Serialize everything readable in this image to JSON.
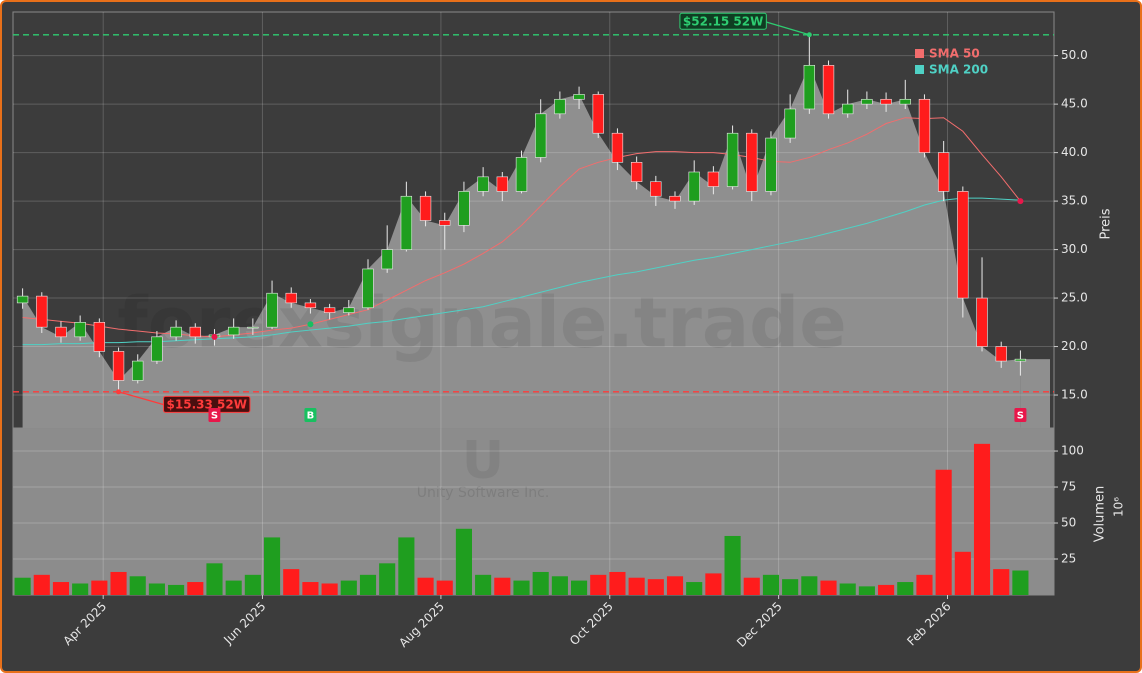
{
  "chart_data": {
    "type": "candlestick",
    "watermark": "forexsignale.trade",
    "ticker": "U",
    "company": "Unity Software Inc.",
    "categories": [
      null,
      null,
      null,
      null,
      null,
      null,
      null,
      null,
      null,
      null,
      null,
      null,
      null,
      null,
      null,
      null,
      null,
      null,
      null,
      null,
      null,
      null,
      null,
      null,
      null,
      null,
      null,
      null,
      null,
      null,
      null,
      null,
      null,
      null,
      null,
      null,
      null,
      null,
      null,
      null,
      null,
      null,
      null,
      null,
      null,
      null,
      null,
      null,
      null,
      null,
      null,
      null,
      null
    ],
    "open": [
      24.5,
      25.2,
      22,
      21,
      22.5,
      19.5,
      16.5,
      18.5,
      21,
      22,
      21,
      21.2,
      22,
      22,
      25.5,
      24.5,
      24,
      23.5,
      24,
      28,
      30,
      35.5,
      33,
      32.5,
      36,
      37.5,
      36,
      39.5,
      44,
      45.5,
      46,
      42,
      39,
      37,
      35.5,
      35,
      38,
      36.5,
      42,
      36,
      41.5,
      44.5,
      49,
      44,
      45,
      45.5,
      45,
      45.5,
      40,
      36,
      25,
      20,
      18.5
    ],
    "high": [
      26,
      25.6,
      22.6,
      23.2,
      22.9,
      19.9,
      19.2,
      21.6,
      22.7,
      22.4,
      21.8,
      22.9,
      22.9,
      26.8,
      26.1,
      24.9,
      24.4,
      24.8,
      29,
      32.5,
      37,
      36,
      33.8,
      37,
      38.5,
      38,
      40.2,
      45.5,
      46.3,
      46.8,
      46.3,
      42.5,
      39.6,
      37.6,
      36,
      39.2,
      38.6,
      42.8,
      42.4,
      42.2,
      46,
      52.15,
      49.5,
      46.5,
      46.3,
      46.2,
      47.5,
      46,
      41.2,
      36.5,
      29.2,
      20.5,
      19.6
    ],
    "low": [
      23.9,
      21.4,
      20.4,
      20.6,
      18.9,
      15.33,
      16.2,
      18.2,
      20.6,
      20.3,
      20.1,
      20.8,
      21.2,
      21.8,
      24,
      23.4,
      22.8,
      23.2,
      23.8,
      27.6,
      29.8,
      32.4,
      30,
      31.8,
      35.5,
      35,
      35.8,
      39,
      43.5,
      44.5,
      41.5,
      38.2,
      36.2,
      34.5,
      34.2,
      34.6,
      35.7,
      36.2,
      35,
      35.6,
      41,
      44,
      43.5,
      43.6,
      44.5,
      44.2,
      44.5,
      39.5,
      35,
      23,
      19.5,
      17.8,
      17
    ],
    "close": [
      25.2,
      22,
      21,
      22.5,
      19.5,
      16.5,
      18.5,
      21,
      22,
      21,
      21.2,
      22,
      22,
      25.5,
      24.5,
      24,
      23.5,
      24,
      28,
      30,
      35.5,
      33,
      32.5,
      36,
      37.5,
      36,
      39.5,
      44,
      45.5,
      46,
      42,
      39,
      37,
      35.5,
      35,
      38,
      36.5,
      42,
      36,
      41.5,
      44.5,
      49,
      44,
      45,
      45.5,
      45,
      45.5,
      40,
      36,
      25,
      20,
      18.5,
      18.7
    ],
    "up_color": "#1f9e1f",
    "down_color": "#ff1c1c",
    "series": [
      {
        "name": "SMA 50",
        "color": "#f26d6d",
        "values": [
          23,
          22.8,
          22.6,
          22.4,
          22.1,
          21.8,
          21.6,
          21.4,
          21.3,
          21.1,
          21,
          21.2,
          21.4,
          21.7,
          21.9,
          22.3,
          22.8,
          23.3,
          23.8,
          24.8,
          25.8,
          26.8,
          27.6,
          28.5,
          29.6,
          30.8,
          32.5,
          34.5,
          36.5,
          38.3,
          39,
          39.5,
          39.9,
          40.1,
          40.1,
          40,
          40,
          39.8,
          39.5,
          39.1,
          39,
          39.5,
          40.3,
          41,
          41.9,
          43,
          43.6,
          43.5,
          43.6,
          42.2,
          39.8,
          37.5,
          35
        ]
      },
      {
        "name": "SMA 200",
        "color": "#4fd1c5",
        "values": [
          20.2,
          20.2,
          20.3,
          20.3,
          20.4,
          20.4,
          20.5,
          20.5,
          20.6,
          20.7,
          20.8,
          20.9,
          21,
          21.2,
          21.5,
          21.7,
          21.9,
          22.1,
          22.4,
          22.6,
          22.9,
          23.2,
          23.5,
          23.8,
          24.1,
          24.6,
          25.1,
          25.6,
          26.1,
          26.6,
          27,
          27.4,
          27.7,
          28.1,
          28.5,
          28.9,
          29.2,
          29.6,
          30,
          30.4,
          30.8,
          31.2,
          31.7,
          32.2,
          32.7,
          33.3,
          33.9,
          34.6,
          35.1,
          35.3,
          35.3,
          35.2,
          35.1
        ]
      }
    ],
    "volume": {
      "label": "Volumen",
      "unit": "10⁶",
      "values": [
        12,
        14,
        9,
        8,
        10,
        16,
        13,
        8,
        7,
        9,
        22,
        10,
        14,
        40,
        18,
        9,
        8,
        10,
        14,
        22,
        40,
        12,
        10,
        46,
        14,
        12,
        10,
        16,
        13,
        10,
        14,
        16,
        12,
        11,
        13,
        9,
        15,
        41,
        12,
        14,
        11,
        13,
        10,
        8,
        6,
        7,
        9,
        14,
        87,
        30,
        105,
        18,
        17
      ],
      "ylim": [
        0,
        116
      ],
      "yticks": [
        25,
        50,
        75,
        100
      ]
    },
    "ylabel": "Preis",
    "ylim": [
      11.6,
      54.5
    ],
    "yticks": [
      {
        "value": 15,
        "label": "15.0"
      },
      {
        "value": 20,
        "label": "20.0"
      },
      {
        "value": 25,
        "label": "25.0"
      },
      {
        "value": 30,
        "label": "30.0"
      },
      {
        "value": 35,
        "label": "35.0"
      },
      {
        "value": 40,
        "label": "40.0"
      },
      {
        "value": 45,
        "label": "45.0"
      },
      {
        "value": 50,
        "label": "50.0"
      }
    ],
    "xticks": [
      {
        "value": 4.2,
        "label": "Apr 2025"
      },
      {
        "value": 12.5,
        "label": "Jun 2025"
      },
      {
        "value": 21.8,
        "label": "Aug 2025"
      },
      {
        "value": 30.6,
        "label": "Oct 2025"
      },
      {
        "value": 39.4,
        "label": "Dec 2025"
      },
      {
        "value": 48.2,
        "label": "Feb 2026"
      }
    ],
    "reference_lines": [
      {
        "value": 52.15,
        "label": "$52.15 52W",
        "color": "#2ecc71",
        "at": 41
      },
      {
        "value": 15.33,
        "label": "$15.33 52W",
        "color": "#ff3b3b",
        "at": 5
      }
    ],
    "signals": [
      {
        "label": "S",
        "at": 10,
        "color": "#e8174a"
      },
      {
        "label": "B",
        "at": 15,
        "color": "#18c060"
      },
      {
        "label": "S",
        "at": 52,
        "color": "#e8174a"
      }
    ],
    "grid": true
  }
}
